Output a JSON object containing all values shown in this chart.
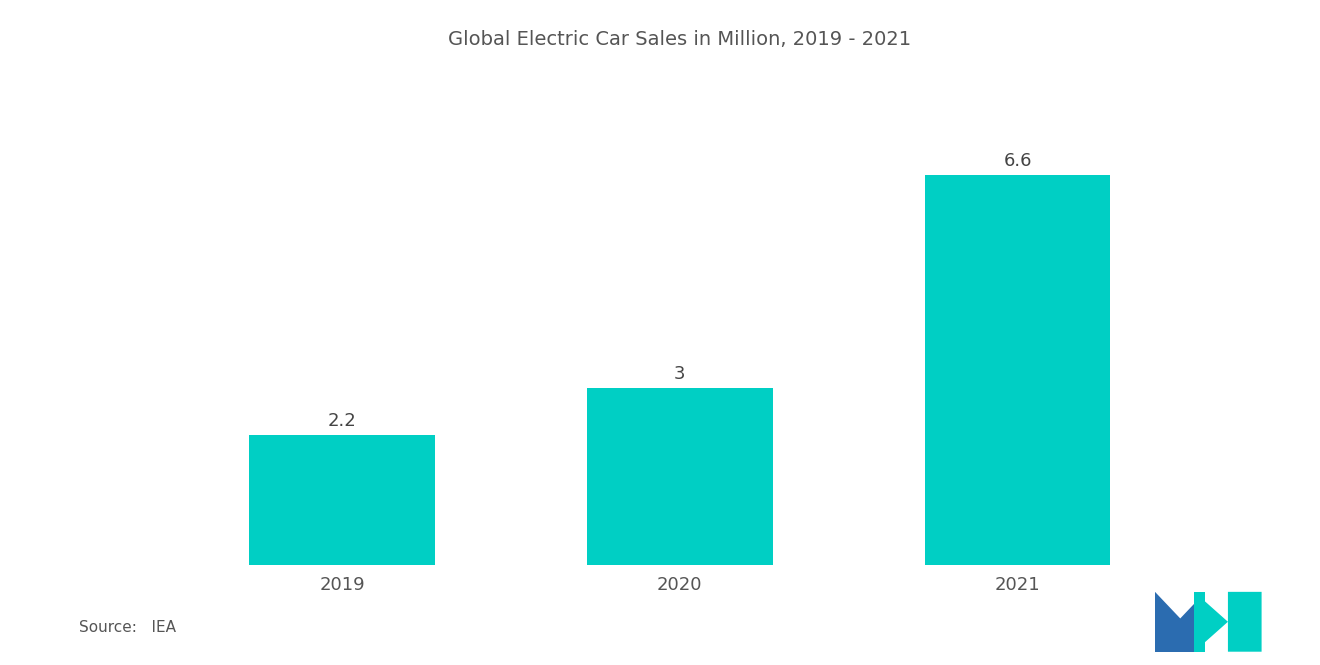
{
  "title": "Global Electric Car Sales in Million, 2019 - 2021",
  "categories": [
    "2019",
    "2020",
    "2021"
  ],
  "values": [
    2.2,
    3.0,
    6.6
  ],
  "bar_color": "#00CFC4",
  "bar_width": 0.55,
  "background_color": "#ffffff",
  "title_fontsize": 14,
  "tick_fontsize": 13,
  "value_fontsize": 13,
  "source_text": "Source:   IEA",
  "ylim": [
    0,
    8.2
  ],
  "title_color": "#555555",
  "tick_color": "#555555",
  "value_label_color": "#444444",
  "source_fontsize": 11,
  "logo_blue": "#2B6CB0",
  "logo_teal": "#00CFC4"
}
